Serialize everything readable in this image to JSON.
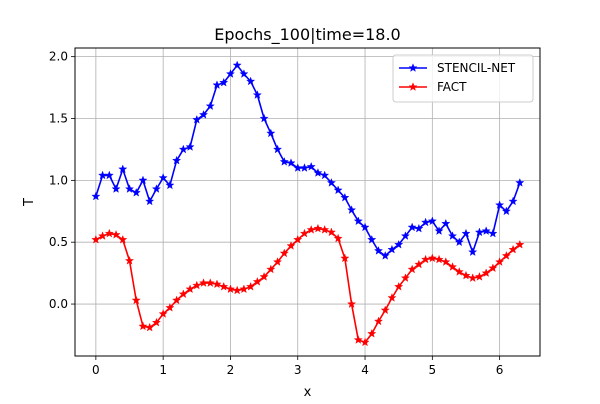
{
  "chart_data": {
    "type": "line",
    "title": "Epochs_100|time=18.0",
    "xlabel": "x",
    "ylabel": "T",
    "xlim": [
      -0.31,
      6.6
    ],
    "ylim": [
      -0.42,
      2.07
    ],
    "xticks": [
      0,
      1,
      2,
      3,
      4,
      5,
      6
    ],
    "xtick_labels": [
      "0",
      "1",
      "2",
      "3",
      "4",
      "5",
      "6"
    ],
    "yticks": [
      0.0,
      0.5,
      1.0,
      1.5,
      2.0
    ],
    "ytick_labels": [
      "0.0",
      "0.5",
      "1.0",
      "1.5",
      "2.0"
    ],
    "grid": true,
    "legend_position": "top-right",
    "x": [
      0,
      0.1,
      0.2,
      0.3,
      0.4,
      0.5,
      0.6,
      0.7,
      0.8,
      0.9,
      1.0,
      1.1,
      1.2,
      1.3,
      1.4,
      1.5,
      1.6,
      1.7,
      1.8,
      1.9,
      2.0,
      2.1,
      2.2,
      2.3,
      2.4,
      2.5,
      2.6,
      2.7,
      2.8,
      2.9,
      3.0,
      3.1,
      3.2,
      3.3,
      3.4,
      3.5,
      3.6,
      3.7,
      3.8,
      3.9,
      4.0,
      4.1,
      4.2,
      4.3,
      4.4,
      4.5,
      4.6,
      4.7,
      4.8,
      4.9,
      5.0,
      5.1,
      5.2,
      5.3,
      5.4,
      5.5,
      5.6,
      5.7,
      5.8,
      5.9,
      6.0,
      6.1,
      6.2,
      6.3
    ],
    "series": [
      {
        "name": "STENCIL-NET",
        "color": "#0000ff",
        "values": [
          0.87,
          1.04,
          1.04,
          0.93,
          1.09,
          0.93,
          0.9,
          1.0,
          0.83,
          0.93,
          1.02,
          0.96,
          1.16,
          1.25,
          1.27,
          1.49,
          1.53,
          1.6,
          1.77,
          1.79,
          1.86,
          1.93,
          1.86,
          1.8,
          1.69,
          1.5,
          1.38,
          1.25,
          1.15,
          1.14,
          1.1,
          1.1,
          1.11,
          1.06,
          1.04,
          0.98,
          0.92,
          0.86,
          0.76,
          0.67,
          0.62,
          0.52,
          0.43,
          0.39,
          0.44,
          0.48,
          0.55,
          0.62,
          0.61,
          0.66,
          0.67,
          0.59,
          0.65,
          0.55,
          0.5,
          0.57,
          0.42,
          0.58,
          0.59,
          0.57,
          0.8,
          0.75,
          0.83,
          0.98
        ]
      },
      {
        "name": "FACT",
        "color": "#ff0000",
        "values": [
          0.52,
          0.55,
          0.57,
          0.56,
          0.52,
          0.35,
          0.03,
          -0.18,
          -0.19,
          -0.15,
          -0.08,
          -0.03,
          0.03,
          0.08,
          0.12,
          0.15,
          0.17,
          0.17,
          0.16,
          0.14,
          0.12,
          0.11,
          0.12,
          0.14,
          0.18,
          0.22,
          0.28,
          0.34,
          0.41,
          0.47,
          0.52,
          0.57,
          0.6,
          0.61,
          0.6,
          0.58,
          0.53,
          0.37,
          0.0,
          -0.29,
          -0.31,
          -0.24,
          -0.14,
          -0.05,
          0.05,
          0.14,
          0.21,
          0.28,
          0.32,
          0.36,
          0.37,
          0.36,
          0.34,
          0.3,
          0.26,
          0.23,
          0.21,
          0.22,
          0.25,
          0.29,
          0.34,
          0.39,
          0.44,
          0.48
        ]
      }
    ]
  }
}
